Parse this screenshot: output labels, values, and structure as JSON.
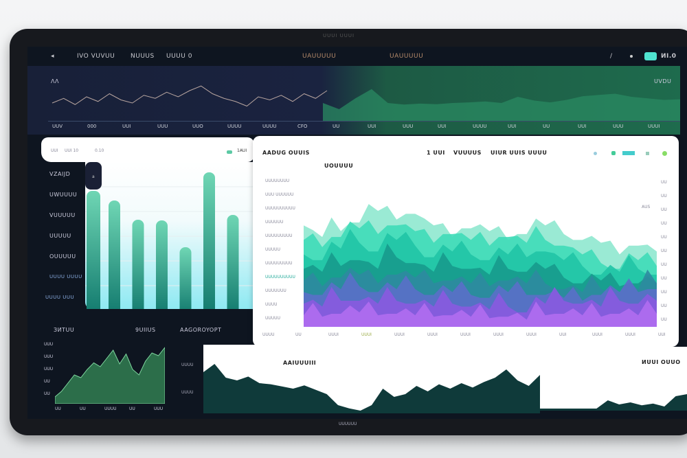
{
  "device_label": "UUUI UUUI",
  "topbar": {
    "items": [
      "IVO VUVUU",
      "NUUUS",
      "UUUU 0",
      "UAUUUUU",
      "UAUUUUU"
    ],
    "right_value": "ИI.0",
    "accent": "#4fe3d0"
  },
  "top_chart": {
    "corner_label": "ΛΛ",
    "right_label": "UVDU",
    "ticks": [
      "UUV",
      "000",
      "UUI",
      "UUU",
      "UUO",
      "UUUU",
      "UUUU",
      "CFO",
      "UU",
      "UUI",
      "UUU",
      "UUI",
      "UUUU",
      "UUI",
      "UU",
      "UUI",
      "UUU",
      "UUUI"
    ],
    "series_left": [
      40,
      55,
      35,
      60,
      45,
      70,
      50,
      40,
      65,
      55,
      75,
      60,
      80,
      95,
      70,
      55,
      45,
      30,
      60,
      50,
      65,
      45,
      70,
      55,
      80
    ],
    "series_right": [
      40,
      20,
      55,
      85,
      40,
      35,
      38,
      36,
      40,
      42,
      45,
      40,
      60,
      48,
      42,
      50,
      62,
      66,
      70,
      60,
      55,
      50,
      52
    ]
  },
  "bar_card": {
    "header": [
      "UUI",
      "UUI 10",
      "0.10"
    ],
    "legend": "1AUI",
    "side_labels": [
      "VZAIJD",
      "UWUUUU",
      "VUUUUU",
      "UUUUU",
      "OUUUUU",
      "UUUU UUUU",
      "UUUU UUU"
    ],
    "tab_label": "a",
    "chart_data": {
      "type": "bar",
      "values": [
        172,
        158,
        130,
        129,
        90,
        199,
        137
      ]
    }
  },
  "area_card": {
    "title": "AADUG OUUIS",
    "subtitle": "UOUUUU",
    "header_items": [
      "1 UUI",
      "VUUUUS",
      "UIUR UUIS UUUU"
    ],
    "y_labels": [
      "UUUUUUUU",
      "UUU UUUUUU",
      "UUUUUUUUUU",
      "UUUUUU",
      "UUUUUUUUU",
      "UUUUU",
      "UUUUUUUUU",
      "UUUUUUUUUU",
      "UUUUUUU",
      "UUUU",
      "UUUUU"
    ],
    "right_labels": [
      "UU",
      "UU",
      "UU",
      "UU",
      "UU",
      "UU",
      "UU",
      "UU",
      "UU",
      "UU",
      "UU"
    ],
    "right_note": "AUS",
    "x_labels": [
      "UUUU",
      "UU",
      "UUUI",
      "UUUI",
      "UUUI",
      "UUUI",
      "UUUI",
      "UUUI",
      "UUUI",
      "UUI",
      "UUUI",
      "UUUI",
      "UUI"
    ],
    "chart_data": {
      "type": "area",
      "layers": [
        {
          "color": "#8fe8cf",
          "values": [
            70,
            62,
            66,
            72,
            80,
            74,
            78,
            70,
            62,
            68,
            66,
            60,
            64,
            70,
            64,
            60,
            58,
            50,
            56,
            52
          ]
        },
        {
          "color": "#3fdcb8",
          "values": [
            60,
            55,
            62,
            68,
            64,
            70,
            66,
            58,
            64,
            60,
            56,
            62,
            58,
            60,
            56,
            50,
            44,
            40,
            46,
            42
          ]
        },
        {
          "color": "#20c4a6",
          "values": [
            50,
            46,
            54,
            58,
            52,
            60,
            56,
            48,
            52,
            50,
            46,
            50,
            48,
            52,
            46,
            42,
            36,
            38,
            40,
            36
          ]
        },
        {
          "color": "#179a8c",
          "values": [
            40,
            38,
            42,
            46,
            40,
            48,
            44,
            38,
            42,
            40,
            36,
            40,
            38,
            40,
            34,
            30,
            32,
            28,
            30,
            30
          ]
        },
        {
          "color": "#2d8aa0",
          "values": [
            32,
            28,
            34,
            36,
            30,
            36,
            34,
            30,
            32,
            30,
            28,
            32,
            30,
            30,
            26,
            24,
            26,
            24,
            26,
            30
          ]
        },
        {
          "color": "#5a6fc8",
          "values": [
            24,
            22,
            26,
            28,
            24,
            26,
            26,
            22,
            24,
            22,
            20,
            24,
            22,
            22,
            20,
            18,
            22,
            24,
            24,
            26
          ]
        },
        {
          "color": "#8a5ae0",
          "values": [
            16,
            14,
            18,
            18,
            16,
            18,
            16,
            14,
            16,
            14,
            12,
            14,
            10,
            16,
            18,
            16,
            14,
            18,
            16,
            18
          ]
        },
        {
          "color": "#b06df0",
          "values": [
            8,
            7,
            9,
            10,
            8,
            9,
            8,
            7,
            8,
            7,
            6,
            7,
            5,
            8,
            9,
            8,
            7,
            9,
            8,
            9
          ]
        }
      ]
    }
  },
  "bottom_left": {
    "title": "ЗИТUU",
    "value": "9UIIUS",
    "y_labels": [
      "UUU",
      "UUU",
      "UUU",
      "UU",
      "UU"
    ],
    "x_labels": [
      "UU",
      "UU",
      "UUUU",
      "UU",
      "UUU"
    ],
    "series": [
      10,
      20,
      35,
      50,
      45,
      60,
      72,
      65,
      80,
      95,
      70,
      88,
      60,
      50,
      75,
      90,
      85,
      100
    ]
  },
  "bottom_mid": {
    "label": "AAGOROYOPT",
    "title": "AAIUUUIII",
    "y_labels": [
      "UUUU",
      "UUUU"
    ],
    "footer": "UUUUUU",
    "series": [
      70,
      85,
      60,
      55,
      62,
      50,
      48,
      44,
      40,
      46,
      38,
      30,
      10,
      4,
      0,
      10,
      40,
      25,
      30,
      45,
      35,
      48,
      40,
      50,
      42,
      52,
      60,
      75,
      55,
      45,
      65
    ]
  },
  "bottom_right": {
    "title": "ИUUI OUUO",
    "series": [
      0,
      0,
      0,
      0,
      0,
      0,
      20,
      10,
      15,
      8,
      12,
      5,
      30,
      35
    ]
  }
}
